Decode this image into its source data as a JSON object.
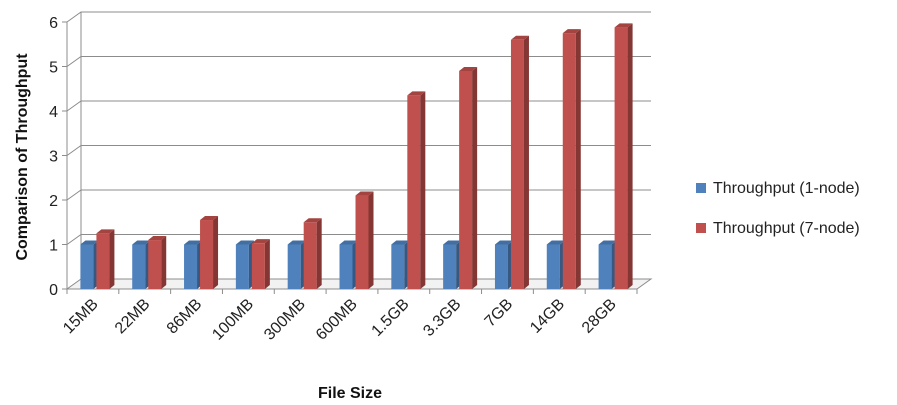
{
  "chart_data": {
    "type": "bar",
    "title": "",
    "xlabel": "File Size",
    "ylabel": "Comparison of Throughput",
    "ylim": [
      0,
      6
    ],
    "yticks": [
      "0",
      "1",
      "2",
      "3",
      "4",
      "5",
      "6"
    ],
    "grid": true,
    "legend_position": "right",
    "categories": [
      "15MB",
      "22MB",
      "86MB",
      "100MB",
      "300MB",
      "600MB",
      "1.5GB",
      "3.3GB",
      "7GB",
      "14GB",
      "28GB"
    ],
    "series": [
      {
        "name": "Throughput (1-node)",
        "color": "#4F81BD",
        "values": [
          1,
          1,
          1,
          1,
          1,
          1,
          1,
          1,
          1,
          1,
          1
        ]
      },
      {
        "name": "Throughput (7-node)",
        "color": "#C0504D",
        "values": [
          1.25,
          1.1,
          1.55,
          1.03,
          1.5,
          2.1,
          4.35,
          4.9,
          5.6,
          5.75,
          5.88
        ]
      }
    ]
  }
}
